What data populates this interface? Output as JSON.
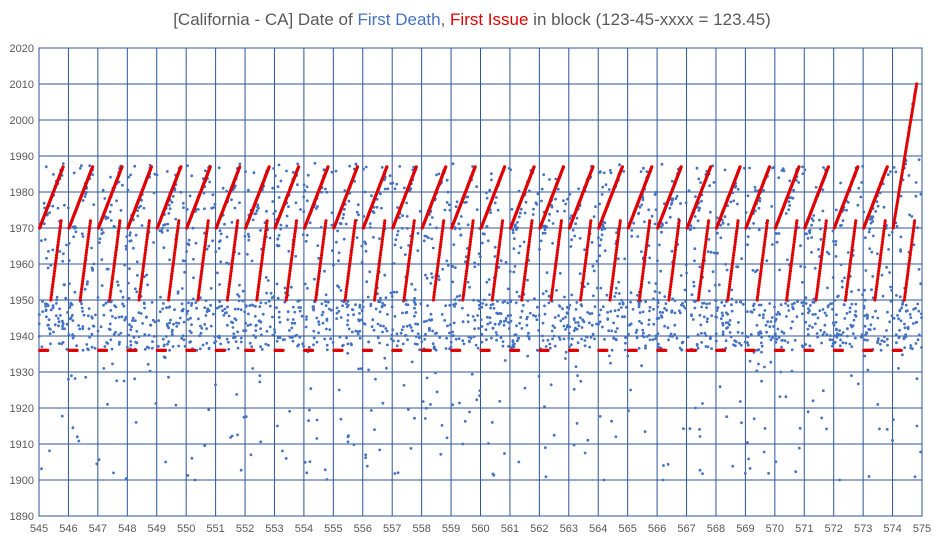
{
  "title": {
    "prefix": "[California - CA] Date of ",
    "death_label": "First Death",
    "separator": ", ",
    "issue_label": "First Issue",
    "suffix": " in block (123-45-xxxx = 123.45)"
  },
  "chart_data": {
    "type": "scatter",
    "title": "[California - CA] Date of First Death, First Issue in block (123-45-xxxx = 123.45)",
    "xlabel": "",
    "ylabel": "",
    "xlim": [
      545,
      575
    ],
    "ylim": [
      1890,
      2020
    ],
    "x_ticks": [
      545,
      546,
      547,
      548,
      549,
      550,
      551,
      552,
      553,
      554,
      555,
      556,
      557,
      558,
      559,
      560,
      561,
      562,
      563,
      564,
      565,
      566,
      567,
      568,
      569,
      570,
      571,
      572,
      573,
      574,
      575
    ],
    "y_ticks": [
      1890,
      1900,
      1910,
      1920,
      1930,
      1940,
      1950,
      1960,
      1970,
      1980,
      1990,
      2000,
      2010,
      2020
    ],
    "grid": true,
    "legend": "none",
    "series": [
      {
        "name": "First Death",
        "color": "#4472c4",
        "pattern": "dense cloud of deaths between about 1936 and 1988 with scattered outliers down to 1900",
        "sample_points": [
          [
            545.1,
            1937
          ],
          [
            545.3,
            1943
          ],
          [
            545.6,
            1950
          ],
          [
            546.0,
            1928
          ],
          [
            546.3,
            1912
          ],
          [
            546.7,
            1942
          ],
          [
            547.2,
            1931
          ],
          [
            547.6,
            1945
          ],
          [
            548.3,
            1916
          ],
          [
            548.8,
            1943
          ],
          [
            549.3,
            1905
          ],
          [
            549.8,
            1945
          ],
          [
            550.3,
            1900
          ],
          [
            550.7,
            1938
          ],
          [
            551.4,
            1943
          ],
          [
            551.8,
            1951
          ],
          [
            552.2,
            1907
          ],
          [
            552.5,
            1929
          ],
          [
            553.1,
            1915
          ],
          [
            553.4,
            1906
          ],
          [
            553.7,
            1940
          ],
          [
            554.1,
            1902
          ],
          [
            554.5,
            1944
          ],
          [
            555.2,
            1925
          ],
          [
            555.5,
            1912
          ],
          [
            556.1,
            1907
          ],
          [
            556.4,
            1914
          ],
          [
            557.2,
            1902
          ],
          [
            557.6,
            1943
          ],
          [
            558.3,
            1921
          ],
          [
            558.7,
            1946
          ],
          [
            559.4,
            1910
          ],
          [
            559.8,
            1942
          ],
          [
            560.4,
            1916
          ],
          [
            560.8,
            1943
          ],
          [
            561.3,
            1905
          ],
          [
            561.6,
            1940
          ],
          [
            562.2,
            1909
          ],
          [
            562.5,
            1940
          ],
          [
            563.3,
            1929
          ],
          [
            563.8,
            1943
          ],
          [
            564.2,
            1900
          ],
          [
            564.6,
            1912
          ],
          [
            565.1,
            1925
          ],
          [
            565.5,
            1940
          ],
          [
            566.2,
            1900
          ],
          [
            566.6,
            1943
          ],
          [
            567.3,
            1920
          ],
          [
            567.7,
            1944
          ],
          [
            568.4,
            1946
          ],
          [
            568.8,
            1938
          ],
          [
            569.3,
            1917
          ],
          [
            569.7,
            1943
          ],
          [
            570.2,
            1930
          ],
          [
            570.6,
            1944
          ],
          [
            571.3,
            1922
          ],
          [
            571.7,
            1943
          ],
          [
            572.2,
            1900
          ],
          [
            572.6,
            1929
          ],
          [
            573.2,
            1901
          ],
          [
            573.5,
            1921
          ],
          [
            574.0,
            1911
          ],
          [
            574.2,
            1931
          ],
          [
            574.6,
            1946
          ],
          [
            574.9,
            1989
          ]
        ]
      },
      {
        "name": "First Issue",
        "color": "#e00000",
        "pattern": "per block: a run at 1936 followed by issue dates rising steeply from about 1950 to 1987 (final block rising to about 2010)",
        "block_starts": [
          545,
          546,
          547,
          548,
          549,
          550,
          551,
          552,
          553,
          554,
          555,
          556,
          557,
          558,
          559,
          560,
          561,
          562,
          563,
          564,
          565,
          566,
          567,
          568,
          569,
          570,
          571,
          572,
          573,
          574
        ],
        "baseline_year": 1936,
        "ramp_low": 1950,
        "ramp_high": 1987,
        "final_block_high": 2010
      }
    ]
  }
}
